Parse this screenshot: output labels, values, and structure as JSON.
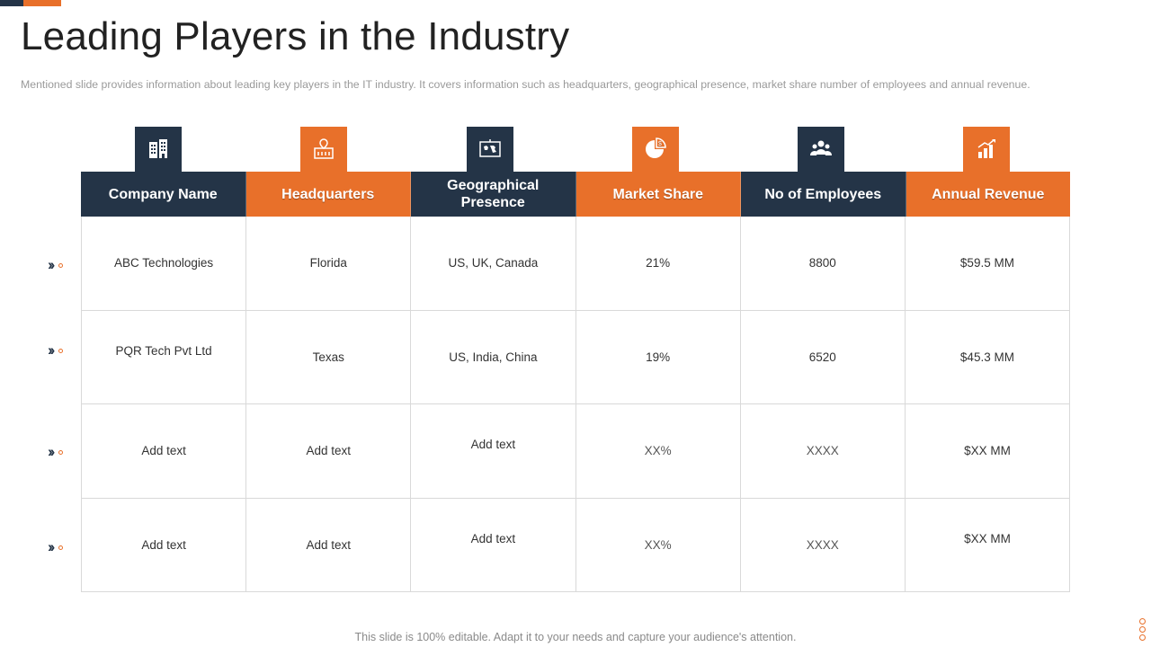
{
  "title": "Leading Players in the Industry",
  "subtitle": "Mentioned slide provides  information  about leading  key players in the IT  industry. It covers  information  such as headquarters,  geographical  presence,  market share number  of employees and  annual revenue.",
  "columns": [
    {
      "label": "Company Name",
      "color": "#243447",
      "icon": "building-icon"
    },
    {
      "label": "Headquarters",
      "color": "#e8702a",
      "icon": "headquarters-pin-icon"
    },
    {
      "label": "Geographical Presence",
      "color": "#243447",
      "icon": "world-map-icon"
    },
    {
      "label": "Market Share",
      "color": "#e8702a",
      "icon": "pie-chart-dollar-icon"
    },
    {
      "label": "No of Employees",
      "color": "#243447",
      "icon": "people-group-icon"
    },
    {
      "label": "Annual Revenue",
      "color": "#e8702a",
      "icon": "growth-chart-icon"
    }
  ],
  "rows": [
    [
      "ABC Technologies",
      "Florida",
      "US, UK, Canada",
      "21%",
      "8800",
      "$59.5 MM"
    ],
    [
      "PQR Tech  Pvt Ltd",
      "Texas",
      "US, India, China",
      "19%",
      "6520",
      "$45.3 MM"
    ],
    [
      "Add text",
      "Add text",
      "Add text",
      "XX%",
      "XXXX",
      "$XX  MM"
    ],
    [
      "Add text",
      "Add text",
      "Add text",
      "XX%",
      "XXXX",
      "$XX  MM"
    ]
  ],
  "footer": "This slide is 100% editable. Adapt it to your needs and capture your audience's attention.",
  "accent_dark": "#243447",
  "accent_orange": "#e8702a"
}
